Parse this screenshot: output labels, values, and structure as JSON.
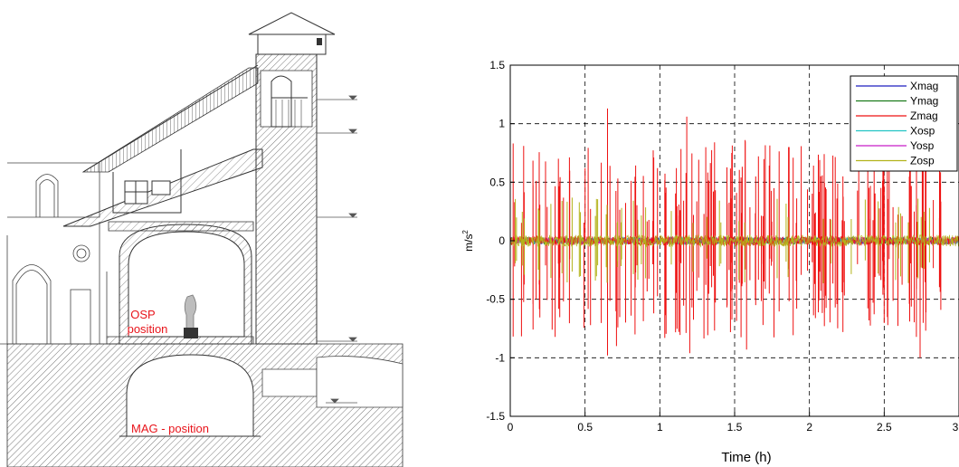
{
  "drawing": {
    "labels": {
      "osp_line1": "OSP",
      "osp_line2": "position",
      "mag": "MAG - position"
    },
    "label_color": "#e8141b"
  },
  "chart_data": {
    "type": "line",
    "title": "",
    "xlabel": "Time (h)",
    "ylabel": "m/s",
    "ylabel_superscript": "2",
    "xlim": [
      0,
      3
    ],
    "ylim": [
      -1.5,
      1.5
    ],
    "xticks": [
      0,
      0.5,
      1,
      1.5,
      2,
      2.5,
      3
    ],
    "xtick_labels": [
      "0",
      "0.5",
      "1",
      "1.5",
      "2",
      "2.5",
      "3"
    ],
    "yticks": [
      -1.5,
      -1,
      -0.5,
      0,
      0.5,
      1,
      1.5
    ],
    "ytick_labels": [
      "-1.5",
      "-1",
      "-0.5",
      "0",
      "0.5",
      "1",
      "1.5"
    ],
    "grid": true,
    "legend_position": "top-right",
    "series": [
      {
        "name": "Xmag",
        "color": "#1f1fbf",
        "amplitude": 0.03,
        "spike_count": 0,
        "spikes": []
      },
      {
        "name": "Ymag",
        "color": "#1a7a1a",
        "amplitude": 0.03,
        "spike_count": 0,
        "spikes": []
      },
      {
        "name": "Zmag",
        "color": "#ee1111",
        "amplitude": 0.04,
        "spike_count": 170,
        "spikes": [
          {
            "x": 0.65,
            "y": 1.13
          },
          {
            "x": 0.65,
            "y": -0.98
          },
          {
            "x": 1.18,
            "y": 1.06
          },
          {
            "x": 1.2,
            "y": -0.96
          },
          {
            "x": 1.57,
            "y": 0.86
          },
          {
            "x": 1.58,
            "y": -0.93
          },
          {
            "x": 2.33,
            "y": 0.86
          },
          {
            "x": 2.74,
            "y": -1.0
          },
          {
            "x": 0.28,
            "y": -0.76
          },
          {
            "x": 0.71,
            "y": -0.9
          },
          {
            "x": 1.69,
            "y": -0.72
          },
          {
            "x": 2.87,
            "y": 0.72
          },
          {
            "x": 0.5,
            "y": 0.62
          },
          {
            "x": 2.1,
            "y": -0.73
          }
        ]
      },
      {
        "name": "Xosp",
        "color": "#22c4c4",
        "amplitude": 0.03,
        "spike_count": 0,
        "spikes": []
      },
      {
        "name": "Yosp",
        "color": "#c81ec8",
        "amplitude": 0.03,
        "spike_count": 0,
        "spikes": []
      },
      {
        "name": "Zosp",
        "color": "#b3b31a",
        "amplitude": 0.05,
        "spike_count": 50,
        "spikes": []
      }
    ]
  }
}
